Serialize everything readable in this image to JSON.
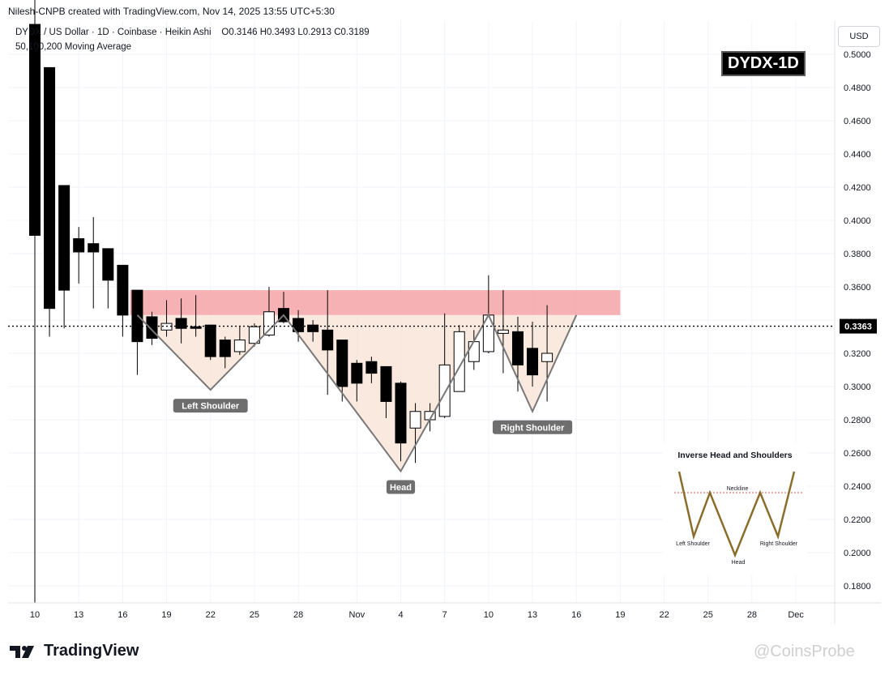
{
  "header": {
    "attribution": "Nilesh-CNPB created with TradingView.com, Nov 14, 2025 13:55 UTC+5:30"
  },
  "legend": {
    "symbol_line": "DYDX / US Dollar · 1D · Coinbase · Heikin Ashi",
    "ohlc": {
      "o": "O0.3146",
      "h": "H0.3493",
      "l": "L0.2913",
      "c": "C0.3189"
    },
    "ma_line": "50,100,200 Moving Average"
  },
  "ticker_tag": "DYDX-1D",
  "currency_button": "USD",
  "current_price_label": "0.3363",
  "brand": {
    "tradingview": "TradingView",
    "watermark": "@CoinsProbe"
  },
  "colors": {
    "bull": "#ffffff",
    "bear": "#000000",
    "resistance": "#f4a3a8",
    "pattern_fill": "#f8e3d6",
    "pattern_line": "#787878"
  },
  "chart_data": {
    "type": "candlestick",
    "title": "",
    "style": "Heikin Ashi",
    "ylim": [
      0.17,
      0.52
    ],
    "yticks": [
      "0.5000",
      "0.4800",
      "0.4600",
      "0.4400",
      "0.4200",
      "0.4000",
      "0.3800",
      "0.3600",
      "0.3400",
      "0.3200",
      "0.3000",
      "0.2800",
      "0.2600",
      "0.2400",
      "0.2200",
      "0.2000",
      "0.1800"
    ],
    "x_ticks": [
      {
        "day": 0,
        "label": "10"
      },
      {
        "day": 3,
        "label": "13"
      },
      {
        "day": 6,
        "label": "16"
      },
      {
        "day": 9,
        "label": "19"
      },
      {
        "day": 12,
        "label": "22"
      },
      {
        "day": 15,
        "label": "25"
      },
      {
        "day": 18,
        "label": "28"
      },
      {
        "day": 22,
        "label": "Nov"
      },
      {
        "day": 25,
        "label": "4"
      },
      {
        "day": 28,
        "label": "7"
      },
      {
        "day": 31,
        "label": "10"
      },
      {
        "day": 34,
        "label": "13"
      },
      {
        "day": 37,
        "label": "16"
      },
      {
        "day": 40,
        "label": "19"
      },
      {
        "day": 43,
        "label": "22"
      },
      {
        "day": 46,
        "label": "25"
      },
      {
        "day": 49,
        "label": "28"
      },
      {
        "day": 52,
        "label": "Dec"
      }
    ],
    "candles": [
      {
        "d": 0,
        "o": 0.518,
        "c": 0.391,
        "h": 0.56,
        "l": 0.17
      },
      {
        "d": 1,
        "o": 0.492,
        "c": 0.347,
        "h": 0.492,
        "l": 0.33
      },
      {
        "d": 2,
        "o": 0.421,
        "c": 0.358,
        "h": 0.421,
        "l": 0.335
      },
      {
        "d": 3,
        "o": 0.389,
        "c": 0.381,
        "h": 0.396,
        "l": 0.362
      },
      {
        "d": 4,
        "o": 0.386,
        "c": 0.381,
        "h": 0.402,
        "l": 0.347
      },
      {
        "d": 5,
        "o": 0.383,
        "c": 0.364,
        "h": 0.383,
        "l": 0.347
      },
      {
        "d": 6,
        "o": 0.373,
        "c": 0.343,
        "h": 0.373,
        "l": 0.33
      },
      {
        "d": 7,
        "o": 0.358,
        "c": 0.327,
        "h": 0.358,
        "l": 0.307
      },
      {
        "d": 8,
        "o": 0.342,
        "c": 0.329,
        "h": 0.345,
        "l": 0.325
      },
      {
        "d": 9,
        "o": 0.334,
        "c": 0.338,
        "h": 0.352,
        "l": 0.33
      },
      {
        "d": 10,
        "o": 0.341,
        "c": 0.335,
        "h": 0.353,
        "l": 0.326
      },
      {
        "d": 11,
        "o": 0.336,
        "c": 0.335,
        "h": 0.355,
        "l": 0.33
      },
      {
        "d": 12,
        "o": 0.337,
        "c": 0.318,
        "h": 0.337,
        "l": 0.316
      },
      {
        "d": 13,
        "o": 0.328,
        "c": 0.318,
        "h": 0.33,
        "l": 0.311
      },
      {
        "d": 14,
        "o": 0.321,
        "c": 0.328,
        "h": 0.336,
        "l": 0.319
      },
      {
        "d": 15,
        "o": 0.326,
        "c": 0.336,
        "h": 0.338,
        "l": 0.324
      },
      {
        "d": 16,
        "o": 0.331,
        "c": 0.345,
        "h": 0.36,
        "l": 0.33
      },
      {
        "d": 17,
        "o": 0.347,
        "c": 0.339,
        "h": 0.357,
        "l": 0.338
      },
      {
        "d": 18,
        "o": 0.341,
        "c": 0.333,
        "h": 0.346,
        "l": 0.327
      },
      {
        "d": 19,
        "o": 0.337,
        "c": 0.333,
        "h": 0.34,
        "l": 0.327
      },
      {
        "d": 20,
        "o": 0.334,
        "c": 0.322,
        "h": 0.358,
        "l": 0.295
      },
      {
        "d": 21,
        "o": 0.328,
        "c": 0.3,
        "h": 0.328,
        "l": 0.291
      },
      {
        "d": 22,
        "o": 0.314,
        "c": 0.302,
        "h": 0.316,
        "l": 0.291
      },
      {
        "d": 23,
        "o": 0.315,
        "c": 0.308,
        "h": 0.318,
        "l": 0.302
      },
      {
        "d": 24,
        "o": 0.312,
        "c": 0.291,
        "h": 0.312,
        "l": 0.281
      },
      {
        "d": 25,
        "o": 0.302,
        "c": 0.266,
        "h": 0.303,
        "l": 0.255
      },
      {
        "d": 26,
        "o": 0.275,
        "c": 0.285,
        "h": 0.29,
        "l": 0.254
      },
      {
        "d": 27,
        "o": 0.28,
        "c": 0.285,
        "h": 0.29,
        "l": 0.273
      },
      {
        "d": 28,
        "o": 0.282,
        "c": 0.313,
        "h": 0.344,
        "l": 0.281
      },
      {
        "d": 29,
        "o": 0.297,
        "c": 0.333,
        "h": 0.337,
        "l": 0.297
      },
      {
        "d": 30,
        "o": 0.315,
        "c": 0.327,
        "h": 0.334,
        "l": 0.31
      },
      {
        "d": 31,
        "o": 0.321,
        "c": 0.343,
        "h": 0.367,
        "l": 0.32
      },
      {
        "d": 32,
        "o": 0.332,
        "c": 0.334,
        "h": 0.358,
        "l": 0.308
      },
      {
        "d": 33,
        "o": 0.333,
        "c": 0.313,
        "h": 0.342,
        "l": 0.297
      },
      {
        "d": 34,
        "o": 0.323,
        "c": 0.307,
        "h": 0.339,
        "l": 0.3
      },
      {
        "d": 35,
        "o": 0.315,
        "c": 0.32,
        "h": 0.349,
        "l": 0.291
      }
    ],
    "current_price": 0.3363,
    "resistance_zone": {
      "from_day": 7,
      "to_day": 40,
      "low": 0.343,
      "high": 0.358
    },
    "pattern": {
      "neckline": 0.343,
      "start_day": 7,
      "end_day": 37,
      "points": [
        {
          "day": 7,
          "y": 0.343
        },
        {
          "day": 12,
          "y": 0.298,
          "label": "Left Shoulder"
        },
        {
          "day": 17,
          "y": 0.343
        },
        {
          "day": 25,
          "y": 0.249,
          "label": "Head"
        },
        {
          "day": 31,
          "y": 0.343
        },
        {
          "day": 34,
          "y": 0.285,
          "label": "Right Shoulder"
        },
        {
          "day": 37,
          "y": 0.343
        }
      ]
    },
    "inset": {
      "title": "Inverse Head and Shoulders",
      "neckline_label": "Neckline",
      "left_shoulder_label": "Left Shoulder",
      "head_label": "Head",
      "right_shoulder_label": "Right Shoulder"
    }
  }
}
